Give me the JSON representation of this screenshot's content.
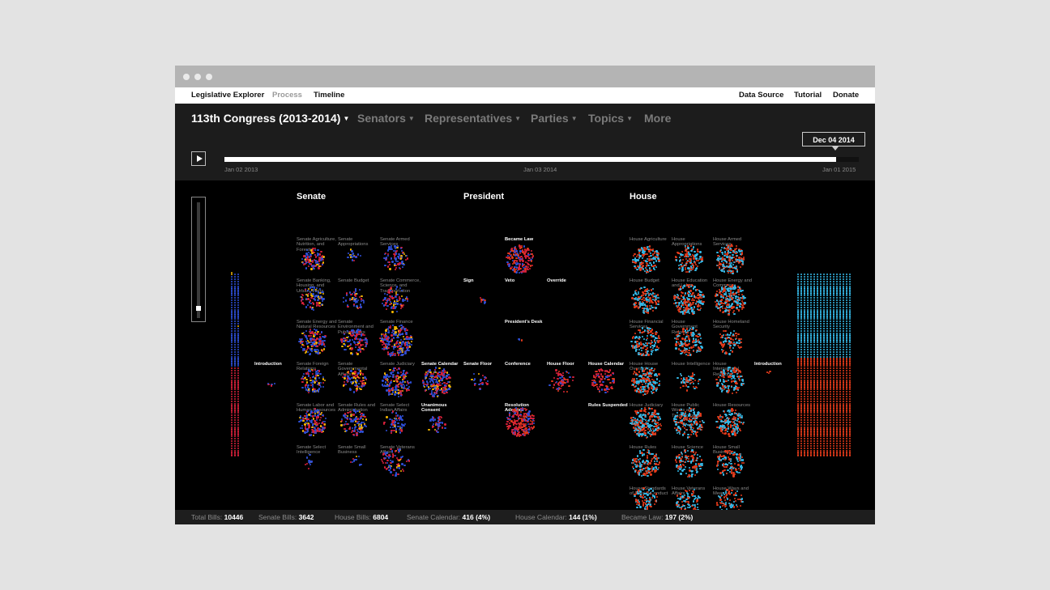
{
  "window": {
    "dots": [
      "close",
      "minimize",
      "maximize"
    ]
  },
  "topnav": {
    "left": [
      {
        "label": "Legislative Explorer",
        "active": true
      },
      {
        "label": "Process",
        "active": false
      },
      {
        "label": "Timeline",
        "active": true
      }
    ],
    "right": [
      "Data Source",
      "Tutorial",
      "Donate"
    ]
  },
  "filters": {
    "congress": "113th Congress (2013-2014)",
    "senators": "Senators",
    "representatives": "Representatives",
    "parties": "Parties",
    "topics": "Topics",
    "more": "More"
  },
  "timeline": {
    "start": "Jan 02 2013",
    "mid": "Jan 03 2014",
    "end": "Jan 01 2015",
    "current": "Dec 04 2014",
    "progress": 0.964
  },
  "sections": {
    "senate": "Senate",
    "president": "President",
    "house": "House"
  },
  "stages": [
    {
      "label": "Senate Agriculture, Nutrition, and Forestry",
      "style": "c"
    },
    {
      "label": "Senate Appropriations",
      "style": "c"
    },
    {
      "label": "Senate Armed Services",
      "style": "c"
    },
    {
      "label": "Senate Banking, Housing, and Urban Affairs",
      "style": "c"
    },
    {
      "label": "Senate Budget",
      "style": "c"
    },
    {
      "label": "Senate Commerce, Science, and Transportation",
      "style": "c"
    },
    {
      "label": "Senate Energy and Natural Resources",
      "style": "c"
    },
    {
      "label": "Senate Environment and Public Works",
      "style": "c"
    },
    {
      "label": "Senate Finance",
      "style": "c"
    },
    {
      "label": "Senate Foreign Relations",
      "style": "c"
    },
    {
      "label": "Senate Governmental Affairs",
      "style": "c"
    },
    {
      "label": "Senate Judiciary",
      "style": "c"
    },
    {
      "label": "Senate Labor and Human Resources",
      "style": "c"
    },
    {
      "label": "Senate Rules and Administration",
      "style": "c"
    },
    {
      "label": "Senate Select Indian Affairs",
      "style": "c"
    },
    {
      "label": "Senate Select Intelligence",
      "style": "c"
    },
    {
      "label": "Senate Small Business",
      "style": "c"
    },
    {
      "label": "Senate Veterans Affairs",
      "style": "c"
    },
    {
      "label": "Introduction",
      "style": "w"
    },
    {
      "label": "Senate Calendar",
      "style": "w"
    },
    {
      "label": "Unanimous Consent",
      "style": "w"
    },
    {
      "label": "Became Law",
      "style": "w"
    },
    {
      "label": "Sign",
      "style": "w"
    },
    {
      "label": "Veto",
      "style": "w"
    },
    {
      "label": "Override",
      "style": "w"
    },
    {
      "label": "President's Desk",
      "style": "w"
    },
    {
      "label": "Senate Floor",
      "style": "w"
    },
    {
      "label": "Conference",
      "style": "w"
    },
    {
      "label": "House Floor",
      "style": "w"
    },
    {
      "label": "House Calendar",
      "style": "w"
    },
    {
      "label": "Resolution Adopted",
      "style": "w"
    },
    {
      "label": "Rules Suspended",
      "style": "w"
    },
    {
      "label": "House Agriculture",
      "style": "c"
    },
    {
      "label": "House Appropriations",
      "style": "c"
    },
    {
      "label": "House Armed Services",
      "style": "c"
    },
    {
      "label": "House Budget",
      "style": "c"
    },
    {
      "label": "House Education and Labor",
      "style": "c"
    },
    {
      "label": "House Energy and Commerce",
      "style": "c"
    },
    {
      "label": "House Financial Services",
      "style": "c"
    },
    {
      "label": "House Government Reform",
      "style": "c"
    },
    {
      "label": "House Homeland Security",
      "style": "c"
    },
    {
      "label": "House House Oversight",
      "style": "c"
    },
    {
      "label": "House Intelligence",
      "style": "c"
    },
    {
      "label": "House International Relations",
      "style": "c"
    },
    {
      "label": "House Judiciary",
      "style": "c"
    },
    {
      "label": "House Public Works and Transportation",
      "style": "c"
    },
    {
      "label": "House Resources",
      "style": "c"
    },
    {
      "label": "House Rules",
      "style": "c"
    },
    {
      "label": "House Science",
      "style": "c"
    },
    {
      "label": "House Small Business",
      "style": "c"
    },
    {
      "label": "House Standards of Official Conduct",
      "style": "c"
    },
    {
      "label": "House Veterans Affairs",
      "style": "c"
    },
    {
      "label": "House Ways and Means",
      "style": "c"
    },
    {
      "label": "Introduction",
      "style": "w"
    }
  ],
  "status": [
    {
      "label": "Total Bills:",
      "value": "10446"
    },
    {
      "label": "Senate Bills:",
      "value": "3642"
    },
    {
      "label": "House Bills:",
      "value": "6804"
    },
    {
      "label": "Senate Calendar:",
      "value": "416 (4%)"
    },
    {
      "label": "House Calendar:",
      "value": "144 (1%)"
    },
    {
      "label": "Became Law:",
      "value": "197 (2%)"
    }
  ],
  "colors": {
    "democrat": "#2d4fd6",
    "republican": "#d6203a",
    "independent": "#f0b400",
    "house_democrat": "#35b7e6",
    "house_republican": "#e23a1a"
  }
}
